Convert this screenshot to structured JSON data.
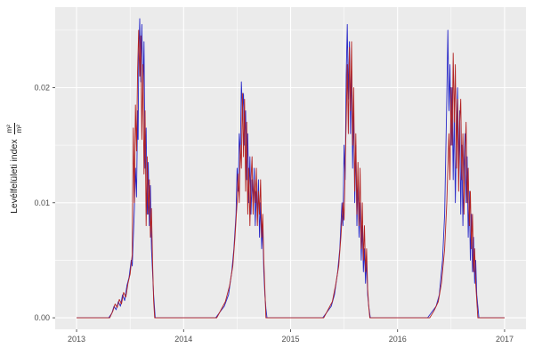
{
  "figure": {
    "background": "#ffffff"
  },
  "chart_data": {
    "type": "line",
    "title": "",
    "xlabel": "",
    "ylabel": "Levélfelületi index",
    "ylabel_fraction": {
      "numerator": "m²",
      "denominator": "m²"
    },
    "xlim": [
      2012.8,
      2017.2
    ],
    "ylim": [
      -0.001,
      0.027
    ],
    "x_ticks": {
      "values": [
        2013,
        2014,
        2015,
        2016,
        2017
      ],
      "labels": [
        "2013",
        "2014",
        "2015",
        "2016",
        "2017"
      ]
    },
    "y_ticks": {
      "values": [
        0.0,
        0.01,
        0.02
      ],
      "labels": [
        "0.00",
        "0.01",
        "0.02"
      ]
    },
    "x_minor": [
      2013.5,
      2014.5,
      2015.5,
      2016.5
    ],
    "y_minor": [
      0.005,
      0.015,
      0.025
    ],
    "panel_bg": "#EBEBEB",
    "grid_color": "#FFFFFF",
    "tick_color": "#333333",
    "tick_label_color": "#4D4D4D",
    "grid": true,
    "legend": "none",
    "series": [
      {
        "name": "series-blue",
        "color": "#2828C8",
        "points": [
          [
            2013.0,
            0
          ],
          [
            2013.3,
            0
          ],
          [
            2013.33,
            0.0004
          ],
          [
            2013.35,
            0.001
          ],
          [
            2013.37,
            0.0007
          ],
          [
            2013.39,
            0.0014
          ],
          [
            2013.41,
            0.001
          ],
          [
            2013.43,
            0.002
          ],
          [
            2013.45,
            0.0015
          ],
          [
            2013.47,
            0.0028
          ],
          [
            2013.49,
            0.0035
          ],
          [
            2013.51,
            0.005
          ],
          [
            2013.52,
            0.0045
          ],
          [
            2013.53,
            0.007
          ],
          [
            2013.54,
            0.0095
          ],
          [
            2013.55,
            0.013
          ],
          [
            2013.56,
            0.0105
          ],
          [
            2013.57,
            0.018
          ],
          [
            2013.575,
            0.0155
          ],
          [
            2013.58,
            0.022
          ],
          [
            2013.59,
            0.026
          ],
          [
            2013.6,
            0.0205
          ],
          [
            2013.61,
            0.0255
          ],
          [
            2013.62,
            0.019
          ],
          [
            2013.63,
            0.024
          ],
          [
            2013.64,
            0.013
          ],
          [
            2013.65,
            0.0165
          ],
          [
            2013.66,
            0.009
          ],
          [
            2013.67,
            0.0135
          ],
          [
            2013.68,
            0.008
          ],
          [
            2013.69,
            0.0115
          ],
          [
            2013.7,
            0.006
          ],
          [
            2013.71,
            0.004
          ],
          [
            2013.72,
            0.002
          ],
          [
            2013.735,
            0
          ],
          [
            2014.3,
            0
          ],
          [
            2014.34,
            0.0005
          ],
          [
            2014.38,
            0.001
          ],
          [
            2014.42,
            0.002
          ],
          [
            2014.45,
            0.004
          ],
          [
            2014.47,
            0.006
          ],
          [
            2014.49,
            0.009
          ],
          [
            2014.5,
            0.013
          ],
          [
            2014.51,
            0.011
          ],
          [
            2014.52,
            0.016
          ],
          [
            2014.53,
            0.014
          ],
          [
            2014.54,
            0.0205
          ],
          [
            2014.55,
            0.018
          ],
          [
            2014.56,
            0.0195
          ],
          [
            2014.57,
            0.015
          ],
          [
            2014.58,
            0.018
          ],
          [
            2014.59,
            0.012
          ],
          [
            2014.6,
            0.016
          ],
          [
            2014.61,
            0.01
          ],
          [
            2014.62,
            0.014
          ],
          [
            2014.63,
            0.009
          ],
          [
            2014.64,
            0.012
          ],
          [
            2014.65,
            0.01
          ],
          [
            2014.66,
            0.013
          ],
          [
            2014.67,
            0.008
          ],
          [
            2014.68,
            0.011
          ],
          [
            2014.69,
            0.009
          ],
          [
            2014.7,
            0.012
          ],
          [
            2014.71,
            0.007
          ],
          [
            2014.72,
            0.01
          ],
          [
            2014.73,
            0.006
          ],
          [
            2014.74,
            0.008
          ],
          [
            2014.75,
            0.004
          ],
          [
            2014.76,
            0.002
          ],
          [
            2014.77,
            0.0008
          ],
          [
            2014.78,
            0
          ],
          [
            2015.3,
            0
          ],
          [
            2015.34,
            0.0005
          ],
          [
            2015.38,
            0.001
          ],
          [
            2015.41,
            0.002
          ],
          [
            2015.44,
            0.004
          ],
          [
            2015.46,
            0.006
          ],
          [
            2015.48,
            0.01
          ],
          [
            2015.49,
            0.008
          ],
          [
            2015.5,
            0.015
          ],
          [
            2015.51,
            0.012
          ],
          [
            2015.52,
            0.021
          ],
          [
            2015.53,
            0.0255
          ],
          [
            2015.54,
            0.019
          ],
          [
            2015.55,
            0.024
          ],
          [
            2015.56,
            0.016
          ],
          [
            2015.57,
            0.022
          ],
          [
            2015.58,
            0.013
          ],
          [
            2015.59,
            0.018
          ],
          [
            2015.6,
            0.01
          ],
          [
            2015.61,
            0.015
          ],
          [
            2015.62,
            0.008
          ],
          [
            2015.63,
            0.012
          ],
          [
            2015.64,
            0.007
          ],
          [
            2015.65,
            0.01
          ],
          [
            2015.66,
            0.005
          ],
          [
            2015.67,
            0.008
          ],
          [
            2015.68,
            0.004
          ],
          [
            2015.69,
            0.006
          ],
          [
            2015.7,
            0.003
          ],
          [
            2015.71,
            0.005
          ],
          [
            2015.72,
            0.002
          ],
          [
            2015.73,
            0.001
          ],
          [
            2015.745,
            0
          ],
          [
            2016.28,
            0
          ],
          [
            2016.32,
            0.0005
          ],
          [
            2016.36,
            0.001
          ],
          [
            2016.39,
            0.002
          ],
          [
            2016.42,
            0.005
          ],
          [
            2016.44,
            0.009
          ],
          [
            2016.45,
            0.014
          ],
          [
            2016.46,
            0.019
          ],
          [
            2016.47,
            0.025
          ],
          [
            2016.48,
            0.018
          ],
          [
            2016.49,
            0.022
          ],
          [
            2016.5,
            0.015
          ],
          [
            2016.51,
            0.02
          ],
          [
            2016.52,
            0.012
          ],
          [
            2016.53,
            0.018
          ],
          [
            2016.54,
            0.01
          ],
          [
            2016.55,
            0.016
          ],
          [
            2016.56,
            0.02
          ],
          [
            2016.57,
            0.013
          ],
          [
            2016.58,
            0.018
          ],
          [
            2016.59,
            0.009
          ],
          [
            2016.6,
            0.015
          ],
          [
            2016.61,
            0.008
          ],
          [
            2016.62,
            0.013
          ],
          [
            2016.63,
            0.016
          ],
          [
            2016.64,
            0.01
          ],
          [
            2016.65,
            0.014
          ],
          [
            2016.66,
            0.007
          ],
          [
            2016.67,
            0.011
          ],
          [
            2016.68,
            0.005
          ],
          [
            2016.69,
            0.009
          ],
          [
            2016.7,
            0.004
          ],
          [
            2016.71,
            0.007
          ],
          [
            2016.72,
            0.003
          ],
          [
            2016.73,
            0.005
          ],
          [
            2016.74,
            0.002
          ],
          [
            2016.75,
            0.001
          ],
          [
            2016.76,
            0
          ],
          [
            2017.0,
            0
          ]
        ]
      },
      {
        "name": "series-red",
        "color": "#B22222",
        "points": [
          [
            2013.0,
            0
          ],
          [
            2013.31,
            0
          ],
          [
            2013.34,
            0.0006
          ],
          [
            2013.36,
            0.0012
          ],
          [
            2013.38,
            0.0009
          ],
          [
            2013.4,
            0.0016
          ],
          [
            2013.42,
            0.0012
          ],
          [
            2013.44,
            0.0022
          ],
          [
            2013.46,
            0.0018
          ],
          [
            2013.48,
            0.003
          ],
          [
            2013.5,
            0.0038
          ],
          [
            2013.52,
            0.0055
          ],
          [
            2013.53,
            0.0165
          ],
          [
            2013.54,
            0.01
          ],
          [
            2013.55,
            0.0185
          ],
          [
            2013.56,
            0.0145
          ],
          [
            2013.57,
            0.0215
          ],
          [
            2013.58,
            0.025
          ],
          [
            2013.59,
            0.021
          ],
          [
            2013.6,
            0.0245
          ],
          [
            2013.61,
            0.0155
          ],
          [
            2013.62,
            0.022
          ],
          [
            2013.63,
            0.0125
          ],
          [
            2013.64,
            0.018
          ],
          [
            2013.65,
            0.008
          ],
          [
            2013.66,
            0.014
          ],
          [
            2013.67,
            0.009
          ],
          [
            2013.68,
            0.012
          ],
          [
            2013.69,
            0.007
          ],
          [
            2013.7,
            0.0095
          ],
          [
            2013.71,
            0.005
          ],
          [
            2013.72,
            0.0015
          ],
          [
            2013.73,
            0
          ],
          [
            2014.31,
            0
          ],
          [
            2014.35,
            0.0007
          ],
          [
            2014.39,
            0.0014
          ],
          [
            2014.43,
            0.0028
          ],
          [
            2014.46,
            0.0045
          ],
          [
            2014.48,
            0.007
          ],
          [
            2014.5,
            0.01
          ],
          [
            2014.51,
            0.0125
          ],
          [
            2014.52,
            0.01
          ],
          [
            2014.53,
            0.015
          ],
          [
            2014.54,
            0.013
          ],
          [
            2014.55,
            0.0195
          ],
          [
            2014.56,
            0.014
          ],
          [
            2014.57,
            0.019
          ],
          [
            2014.58,
            0.011
          ],
          [
            2014.59,
            0.017
          ],
          [
            2014.6,
            0.009
          ],
          [
            2014.61,
            0.013
          ],
          [
            2014.62,
            0.008
          ],
          [
            2014.63,
            0.012
          ],
          [
            2014.64,
            0.014
          ],
          [
            2014.65,
            0.009
          ],
          [
            2014.66,
            0.012
          ],
          [
            2014.67,
            0.01
          ],
          [
            2014.68,
            0.013
          ],
          [
            2014.69,
            0.008
          ],
          [
            2014.7,
            0.011
          ],
          [
            2014.71,
            0.009
          ],
          [
            2014.72,
            0.012
          ],
          [
            2014.73,
            0.007
          ],
          [
            2014.74,
            0.009
          ],
          [
            2014.75,
            0.005
          ],
          [
            2014.76,
            0.0025
          ],
          [
            2014.77,
            0
          ],
          [
            2015.31,
            0
          ],
          [
            2015.35,
            0.0007
          ],
          [
            2015.39,
            0.0014
          ],
          [
            2015.42,
            0.0028
          ],
          [
            2015.45,
            0.0045
          ],
          [
            2015.47,
            0.007
          ],
          [
            2015.49,
            0.01
          ],
          [
            2015.5,
            0.0085
          ],
          [
            2015.51,
            0.013
          ],
          [
            2015.52,
            0.017
          ],
          [
            2015.53,
            0.022
          ],
          [
            2015.54,
            0.016
          ],
          [
            2015.55,
            0.0235
          ],
          [
            2015.56,
            0.018
          ],
          [
            2015.57,
            0.024
          ],
          [
            2015.58,
            0.015
          ],
          [
            2015.59,
            0.02
          ],
          [
            2015.6,
            0.011
          ],
          [
            2015.61,
            0.016
          ],
          [
            2015.62,
            0.009
          ],
          [
            2015.63,
            0.0135
          ],
          [
            2015.64,
            0.008
          ],
          [
            2015.65,
            0.013
          ],
          [
            2015.66,
            0.006
          ],
          [
            2015.67,
            0.01
          ],
          [
            2015.68,
            0.005
          ],
          [
            2015.69,
            0.008
          ],
          [
            2015.7,
            0.004
          ],
          [
            2015.71,
            0.006
          ],
          [
            2015.72,
            0.0025
          ],
          [
            2015.73,
            0.001
          ],
          [
            2015.74,
            0
          ],
          [
            2016.3,
            0
          ],
          [
            2016.34,
            0.0006
          ],
          [
            2016.38,
            0.0014
          ],
          [
            2016.41,
            0.003
          ],
          [
            2016.44,
            0.006
          ],
          [
            2016.46,
            0.01
          ],
          [
            2016.48,
            0.016
          ],
          [
            2016.49,
            0.012
          ],
          [
            2016.5,
            0.02
          ],
          [
            2016.51,
            0.015
          ],
          [
            2016.52,
            0.023
          ],
          [
            2016.53,
            0.017
          ],
          [
            2016.54,
            0.022
          ],
          [
            2016.55,
            0.013
          ],
          [
            2016.56,
            0.019
          ],
          [
            2016.57,
            0.011
          ],
          [
            2016.58,
            0.017
          ],
          [
            2016.59,
            0.019
          ],
          [
            2016.6,
            0.012
          ],
          [
            2016.61,
            0.016
          ],
          [
            2016.62,
            0.009
          ],
          [
            2016.63,
            0.014
          ],
          [
            2016.64,
            0.017
          ],
          [
            2016.65,
            0.01
          ],
          [
            2016.66,
            0.013
          ],
          [
            2016.67,
            0.008
          ],
          [
            2016.68,
            0.011
          ],
          [
            2016.69,
            0.006
          ],
          [
            2016.7,
            0.009
          ],
          [
            2016.71,
            0.004
          ],
          [
            2016.72,
            0.006
          ],
          [
            2016.73,
            0.003
          ],
          [
            2016.74,
            0.0015
          ],
          [
            2016.75,
            0
          ],
          [
            2017.0,
            0
          ]
        ]
      }
    ]
  }
}
